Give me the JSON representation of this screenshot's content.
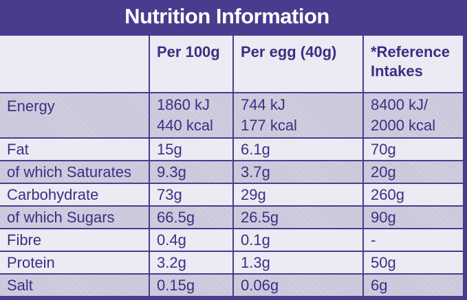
{
  "title": "Nutrition Information",
  "headers": [
    "",
    "Per 100g",
    "Per egg (40g)",
    "*Reference Intakes"
  ],
  "rows": [
    {
      "name": "Energy",
      "per100": "1860 kJ",
      "per100b": "440 kcal",
      "perEgg": "744 kJ",
      "perEggb": "177 kcal",
      "ri": "8400 kJ/",
      "rib": "2000 kcal"
    },
    {
      "name": "Fat",
      "per100": "15g",
      "perEgg": "6.1g",
      "ri": "70g"
    },
    {
      "name": "of which Saturates",
      "per100": "9.3g",
      "perEgg": "3.7g",
      "ri": "20g"
    },
    {
      "name": "Carbohydrate",
      "per100": "73g",
      "perEgg": "29g",
      "ri": "260g"
    },
    {
      "name": "of which Sugars",
      "per100": "66.5g",
      "perEgg": "26.5g",
      "ri": "90g"
    },
    {
      "name": "Fibre",
      "per100": "0.4g",
      "perEgg": "0.1g",
      "ri": "-"
    },
    {
      "name": "Protein",
      "per100": "3.2g",
      "perEgg": "1.3g",
      "ri": "50g"
    },
    {
      "name": "Salt",
      "per100": "0.15g",
      "perEgg": "0.06g",
      "ri": "6g"
    }
  ]
}
